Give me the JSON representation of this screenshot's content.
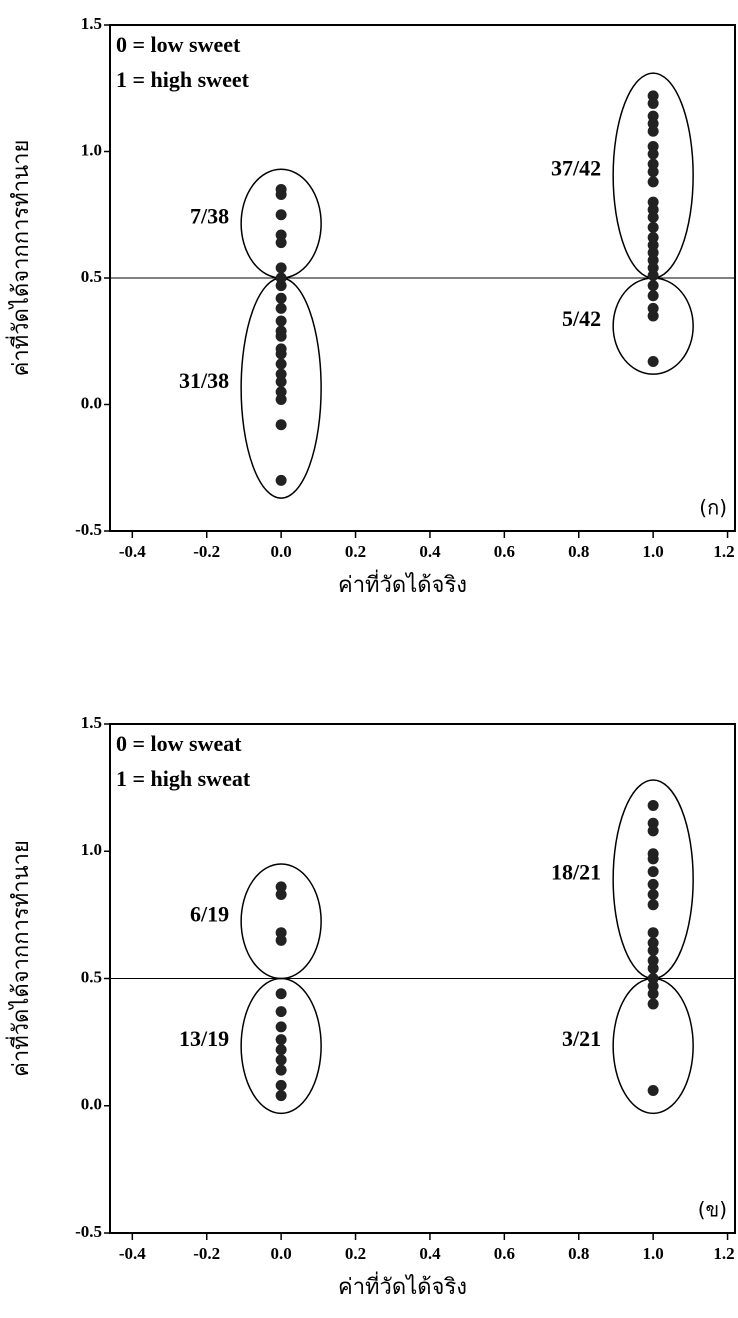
{
  "chart_data": [
    {
      "type": "scatter",
      "x_label": "ค่าที่วัดได้จริง",
      "y_label": "ค่าที่วัดได้จากการทำนาย",
      "legend_lines": [
        "0 = low sweet",
        "1 = high sweet"
      ],
      "panel_label": "(ก)",
      "color": "#222222",
      "reference_line": 0.5,
      "x": [
        0,
        0,
        0,
        0,
        0,
        0,
        0,
        0,
        0,
        0,
        0,
        0,
        0,
        0,
        0,
        0,
        0,
        0,
        0,
        0,
        0,
        0,
        1,
        1,
        1,
        1,
        1,
        1,
        1,
        1,
        1,
        1,
        1,
        1,
        1,
        1,
        1,
        1,
        1,
        1,
        1,
        1,
        1,
        1,
        1,
        1,
        1
      ],
      "values": [
        0.85,
        0.83,
        0.75,
        0.67,
        0.64,
        0.54,
        0.5,
        0.47,
        0.42,
        0.38,
        0.33,
        0.29,
        0.27,
        0.22,
        0.2,
        0.16,
        0.12,
        0.09,
        0.05,
        0.02,
        -0.08,
        -0.3,
        1.22,
        1.19,
        1.14,
        1.11,
        1.08,
        1.02,
        0.99,
        0.95,
        0.92,
        0.88,
        0.8,
        0.77,
        0.74,
        0.7,
        0.66,
        0.63,
        0.6,
        0.57,
        0.54,
        0.51,
        0.47,
        0.43,
        0.38,
        0.35,
        0.17
      ],
      "groups": [
        {
          "label": "7/38",
          "x": 0,
          "y": [
            0.5,
            0.93
          ]
        },
        {
          "label": "31/38",
          "x": 0,
          "y": [
            -0.37,
            0.5
          ]
        },
        {
          "label": "37/42",
          "x": 1,
          "y": [
            0.5,
            1.31
          ]
        },
        {
          "label": "5/42",
          "x": 1,
          "y": [
            0.12,
            0.5
          ]
        }
      ],
      "xlim": [
        -0.46,
        1.22
      ],
      "ylim": [
        -0.5,
        1.5
      ],
      "xticks": [
        -0.4,
        -0.2,
        {
          "value": 0,
          "label": "0.0"
        },
        0.2,
        0.4,
        0.6,
        0.8,
        {
          "value": 1,
          "label": "1.0"
        },
        1.2
      ],
      "yticks": [
        -0.5,
        {
          "value": 0,
          "label": "0.0"
        },
        0.5,
        {
          "value": 1,
          "label": "1.0"
        },
        1.5
      ]
    },
    {
      "type": "scatter",
      "x_label": "ค่าที่วัดได้จริง",
      "y_label": "ค่าที่วัดได้จากการทำนาย",
      "legend_lines": [
        "0 = low sweat",
        "1 = high sweat"
      ],
      "panel_label": "(ข)",
      "color": "#222222",
      "reference_line": 0.5,
      "x": [
        0,
        0,
        0,
        0,
        0,
        0,
        0,
        0,
        0,
        0,
        0,
        0,
        0,
        1,
        1,
        1,
        1,
        1,
        1,
        1,
        1,
        1,
        1,
        1,
        1,
        1,
        1,
        1,
        1,
        1,
        1,
        1
      ],
      "values": [
        0.86,
        0.83,
        0.68,
        0.65,
        0.44,
        0.37,
        0.31,
        0.26,
        0.22,
        0.18,
        0.14,
        0.08,
        0.04,
        1.18,
        1.11,
        1.08,
        0.99,
        0.97,
        0.92,
        0.87,
        0.83,
        0.79,
        0.68,
        0.64,
        0.61,
        0.57,
        0.54,
        0.5,
        0.47,
        0.44,
        0.4,
        0.06
      ],
      "groups": [
        {
          "label": "6/19",
          "x": 0,
          "y": [
            0.5,
            0.95
          ]
        },
        {
          "label": "13/19",
          "x": 0,
          "y": [
            -0.03,
            0.5
          ]
        },
        {
          "label": "18/21",
          "x": 1,
          "y": [
            0.5,
            1.28
          ]
        },
        {
          "label": "3/21",
          "x": 1,
          "y": [
            -0.03,
            0.5
          ]
        }
      ],
      "xlim": [
        -0.46,
        1.22
      ],
      "ylim": [
        -0.5,
        1.5
      ],
      "xticks": [
        -0.4,
        -0.2,
        {
          "value": 0,
          "label": "0.0"
        },
        0.2,
        0.4,
        0.6,
        0.8,
        {
          "value": 1,
          "label": "1.0"
        },
        1.2
      ],
      "yticks": [
        -0.5,
        {
          "value": 0,
          "label": "0.0"
        },
        0.5,
        {
          "value": 1,
          "label": "1.0"
        },
        1.5
      ]
    }
  ]
}
